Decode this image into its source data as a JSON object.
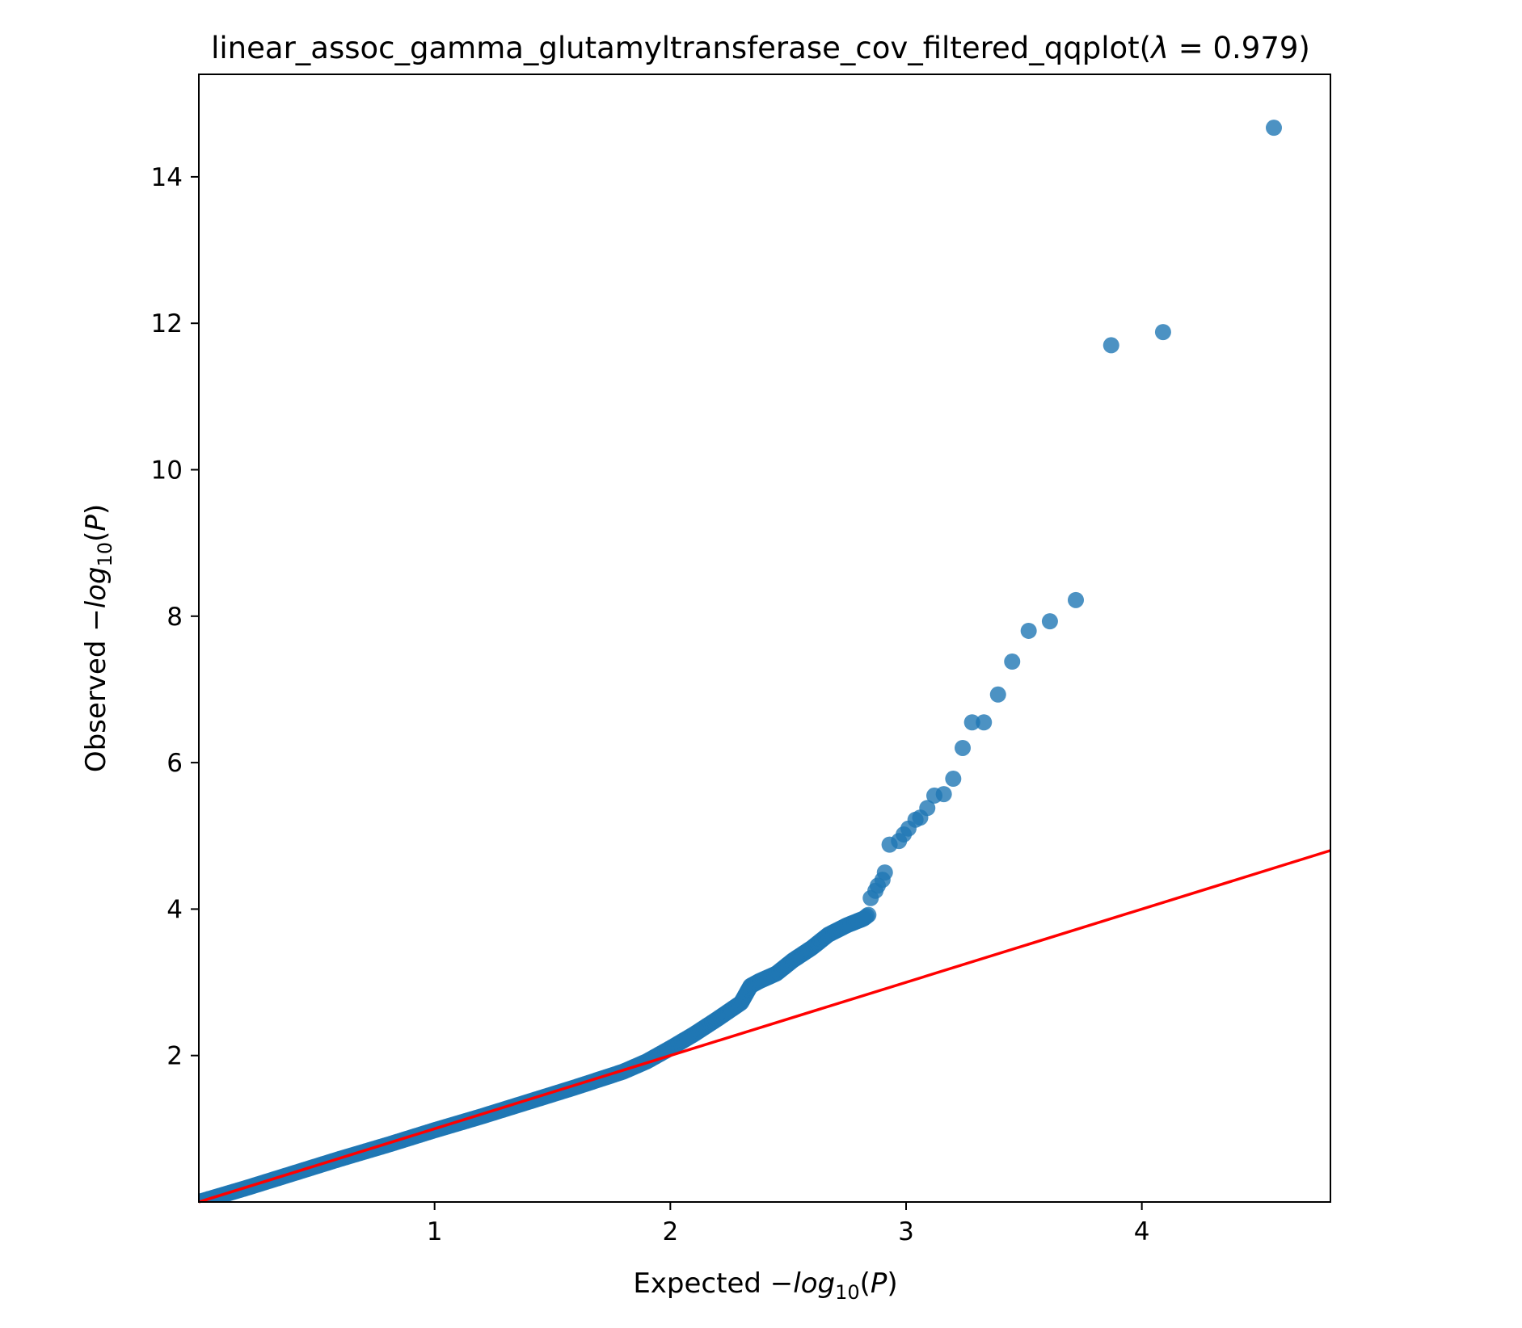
{
  "title_prefix": "linear_assoc_gamma_glutamyltransferase_cov_filtered_qqplot(",
  "title_lambda_symbol": "λ",
  "title_equals": " = 0.979)",
  "xlabel": {
    "text": "Expected ",
    "minus": "−",
    "log": "log",
    "sub": "10",
    "open": "(",
    "P": "P",
    "close": ")"
  },
  "ylabel": {
    "text": "Observed ",
    "minus": "−",
    "log": "log",
    "sub": "10",
    "open": "(",
    "P": "P",
    "close": ")"
  },
  "chart_data": {
    "type": "scatter",
    "title": "linear_assoc_gamma_glutamyltransferase_cov_filtered_qqplot(λ = 0.979)",
    "xlabel": "Expected −log10(P)",
    "ylabel": "Observed −log10(P)",
    "xlim": [
      0.0,
      4.8
    ],
    "ylim": [
      0.0,
      15.4
    ],
    "x_ticks": [
      1,
      2,
      3,
      4
    ],
    "y_ticks": [
      2,
      4,
      6,
      8,
      10,
      12,
      14
    ],
    "grid": false,
    "legend": "none",
    "marker_color": "#1f77b4",
    "line_color": "#ff0000",
    "reference_line": {
      "x": [
        0.0,
        4.8
      ],
      "y": [
        0.0,
        4.8
      ]
    },
    "curve_dense": {
      "x": [
        0.0,
        0.2,
        0.4,
        0.6,
        0.8,
        1.0,
        1.2,
        1.4,
        1.6,
        1.8,
        1.9,
        2.0,
        2.1,
        2.2,
        2.3,
        2.34,
        2.38,
        2.45,
        2.52,
        2.6,
        2.67,
        2.75,
        2.82,
        2.84
      ],
      "y": [
        0.0,
        0.19,
        0.39,
        0.59,
        0.78,
        0.98,
        1.17,
        1.37,
        1.57,
        1.78,
        1.92,
        2.1,
        2.29,
        2.5,
        2.72,
        2.95,
        3.02,
        3.12,
        3.3,
        3.47,
        3.65,
        3.78,
        3.87,
        3.92
      ]
    },
    "points": {
      "x": [
        2.85,
        2.87,
        2.88,
        2.9,
        2.91,
        2.93,
        2.97,
        2.99,
        3.01,
        3.04,
        3.06,
        3.09,
        3.12,
        3.16,
        3.2,
        3.24,
        3.28,
        3.33,
        3.39,
        3.45,
        3.52,
        3.61,
        3.72,
        3.87,
        4.09,
        4.56
      ],
      "y": [
        4.15,
        4.25,
        4.32,
        4.4,
        4.5,
        4.88,
        4.93,
        5.02,
        5.1,
        5.22,
        5.25,
        5.38,
        5.55,
        5.57,
        5.78,
        6.2,
        6.55,
        6.55,
        6.93,
        7.38,
        7.8,
        7.93,
        8.22,
        11.7,
        11.88,
        14.67
      ]
    }
  }
}
